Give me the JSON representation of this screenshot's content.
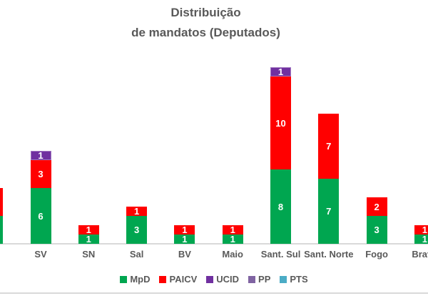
{
  "title": {
    "line1": "Distribuição",
    "line2": "de mandatos (Deputados)"
  },
  "chart_data": {
    "type": "bar",
    "stacked": true,
    "title": "Distribuição de mandatos (Deputados)",
    "xlabel": "",
    "ylabel": "",
    "grid": false,
    "legend_position": "bottom",
    "value_labels": "white, shown inside each segment",
    "categories": [
      "",
      "SV",
      "SN",
      "Sal",
      "BV",
      "Maio",
      "Sant. Sul",
      "Sant. Norte",
      "Fogo",
      "Brava"
    ],
    "categories_note_first_and_last_clipped_by_image_edge": true,
    "series": [
      {
        "name": "MpD",
        "color": "#00A650",
        "values": [
          3,
          6,
          1,
          3,
          1,
          1,
          8,
          7,
          3,
          1
        ]
      },
      {
        "name": "PAICV",
        "color": "#FF0000",
        "values": [
          3,
          3,
          1,
          1,
          1,
          1,
          10,
          7,
          2,
          1
        ]
      },
      {
        "name": "UCID",
        "color": "#7030A0",
        "values": [
          0,
          1,
          0,
          0,
          0,
          0,
          1,
          0,
          0,
          0
        ]
      },
      {
        "name": "PP",
        "color": "#8064A2",
        "values": [
          0,
          0,
          0,
          0,
          0,
          0,
          0,
          0,
          0,
          0
        ]
      },
      {
        "name": "PTS",
        "color": "#4BACC6",
        "values": [
          0,
          0,
          0,
          0,
          0,
          0,
          0,
          0,
          0,
          0
        ]
      }
    ]
  },
  "colors": {
    "text": "#595959",
    "axis_line": "#D9D9D9",
    "background": "#FFFFFF"
  }
}
